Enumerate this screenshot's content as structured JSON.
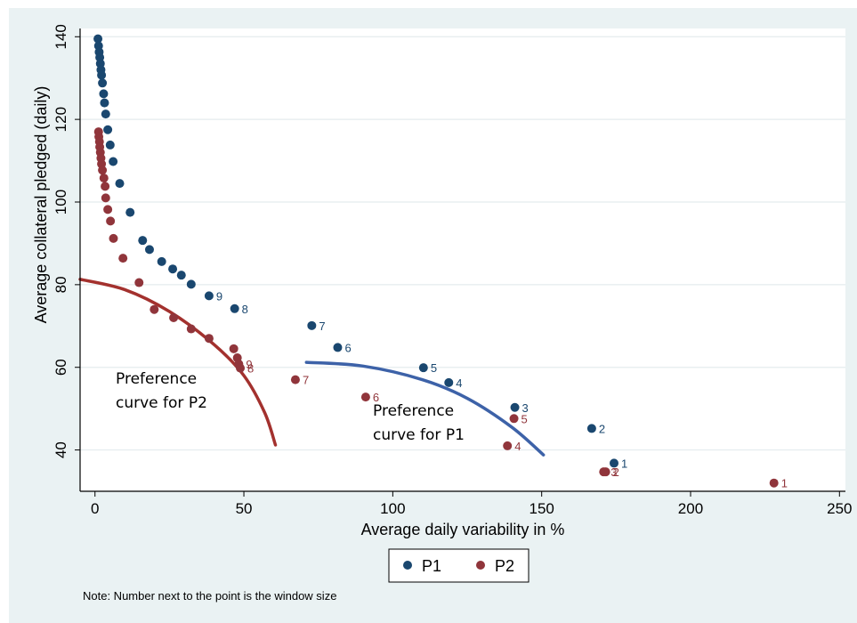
{
  "chart_data": {
    "type": "scatter",
    "xlabel": "Average daily variability in %",
    "ylabel": "Average collateral pledged (daily)",
    "xlim": [
      -5,
      252
    ],
    "ylim": [
      30,
      142
    ],
    "x_ticks": [
      0,
      50,
      100,
      150,
      200,
      250
    ],
    "y_ticks": [
      40,
      60,
      80,
      100,
      120,
      140
    ],
    "grid": "horizontal",
    "legend_position": "bottom",
    "note": "Note: Number next to the point is the window size",
    "series": [
      {
        "name": "P1",
        "color": "#1a476f",
        "points": [
          {
            "x": 1.0,
            "y": 139.5
          },
          {
            "x": 1.2,
            "y": 137.8
          },
          {
            "x": 1.4,
            "y": 136.3
          },
          {
            "x": 1.6,
            "y": 135.0
          },
          {
            "x": 1.8,
            "y": 133.5
          },
          {
            "x": 2.0,
            "y": 132.0
          },
          {
            "x": 2.2,
            "y": 130.7
          },
          {
            "x": 2.5,
            "y": 128.8
          },
          {
            "x": 2.9,
            "y": 126.2
          },
          {
            "x": 3.2,
            "y": 124.0
          },
          {
            "x": 3.6,
            "y": 121.3
          },
          {
            "x": 4.3,
            "y": 117.5
          },
          {
            "x": 5.1,
            "y": 113.8
          },
          {
            "x": 6.1,
            "y": 109.8
          },
          {
            "x": 8.3,
            "y": 104.5
          },
          {
            "x": 11.8,
            "y": 97.5
          },
          {
            "x": 16.0,
            "y": 90.7
          },
          {
            "x": 18.3,
            "y": 88.5
          },
          {
            "x": 22.4,
            "y": 85.6
          },
          {
            "x": 26.1,
            "y": 83.8
          },
          {
            "x": 29.0,
            "y": 82.3
          },
          {
            "x": 32.3,
            "y": 80.1
          },
          {
            "x": 38.3,
            "y": 77.3,
            "label": "9"
          },
          {
            "x": 46.9,
            "y": 74.2,
            "label": "8"
          },
          {
            "x": 72.8,
            "y": 70.1,
            "label": "7"
          },
          {
            "x": 81.5,
            "y": 64.8,
            "label": "6"
          },
          {
            "x": 110.3,
            "y": 59.9,
            "label": "5"
          },
          {
            "x": 118.8,
            "y": 56.3,
            "label": "4"
          },
          {
            "x": 141.0,
            "y": 50.3,
            "label": "3"
          },
          {
            "x": 166.8,
            "y": 45.2,
            "label": "2"
          },
          {
            "x": 174.3,
            "y": 36.8,
            "label": "1"
          }
        ]
      },
      {
        "name": "P2",
        "color": "#90353b",
        "points": [
          {
            "x": 1.2,
            "y": 117.0
          },
          {
            "x": 1.3,
            "y": 115.8
          },
          {
            "x": 1.5,
            "y": 114.6
          },
          {
            "x": 1.6,
            "y": 113.3
          },
          {
            "x": 1.8,
            "y": 112.0
          },
          {
            "x": 2.0,
            "y": 110.6
          },
          {
            "x": 2.2,
            "y": 109.2
          },
          {
            "x": 2.5,
            "y": 107.7
          },
          {
            "x": 3.0,
            "y": 105.8
          },
          {
            "x": 3.4,
            "y": 103.8
          },
          {
            "x": 3.6,
            "y": 101.0
          },
          {
            "x": 4.3,
            "y": 98.2
          },
          {
            "x": 5.2,
            "y": 95.4
          },
          {
            "x": 6.2,
            "y": 91.2
          },
          {
            "x": 9.4,
            "y": 86.4
          },
          {
            "x": 14.8,
            "y": 80.5
          },
          {
            "x": 19.9,
            "y": 74.0
          },
          {
            "x": 26.4,
            "y": 72.0
          },
          {
            "x": 32.3,
            "y": 69.3
          },
          {
            "x": 38.3,
            "y": 67.0
          },
          {
            "x": 46.6,
            "y": 64.5
          },
          {
            "x": 47.8,
            "y": 62.3
          },
          {
            "x": 48.3,
            "y": 60.8,
            "label": "9"
          },
          {
            "x": 48.8,
            "y": 59.8,
            "label": "8"
          },
          {
            "x": 67.3,
            "y": 57.0,
            "label": "7"
          },
          {
            "x": 90.9,
            "y": 52.8,
            "label": "6"
          },
          {
            "x": 140.7,
            "y": 47.6,
            "label": "5"
          },
          {
            "x": 138.5,
            "y": 41.0,
            "label": "4"
          },
          {
            "x": 170.8,
            "y": 34.7,
            "label": "3"
          },
          {
            "x": 171.5,
            "y": 34.7,
            "label": "2"
          },
          {
            "x": 228.0,
            "y": 32.0,
            "label": "1"
          }
        ]
      }
    ],
    "curves": [
      {
        "label": "Preference curve for P2",
        "color": "#a3312e",
        "points": [
          [
            -5,
            81.3
          ],
          [
            10,
            78.8
          ],
          [
            25,
            73.5
          ],
          [
            40,
            65.5
          ],
          [
            50,
            58.0
          ],
          [
            57,
            49.0
          ],
          [
            60.6,
            41.2
          ]
        ]
      },
      {
        "label": "Preference curve for P1",
        "color": "#3d62a8",
        "points": [
          [
            71,
            61.2
          ],
          [
            90,
            60.3
          ],
          [
            110,
            57.0
          ],
          [
            125,
            52.5
          ],
          [
            140,
            45.5
          ],
          [
            150.6,
            38.8
          ]
        ]
      }
    ],
    "annotations": [
      {
        "lines": [
          "Preference",
          "curve for P2"
        ]
      },
      {
        "lines": [
          "Preference",
          "curve for P1"
        ]
      }
    ]
  }
}
